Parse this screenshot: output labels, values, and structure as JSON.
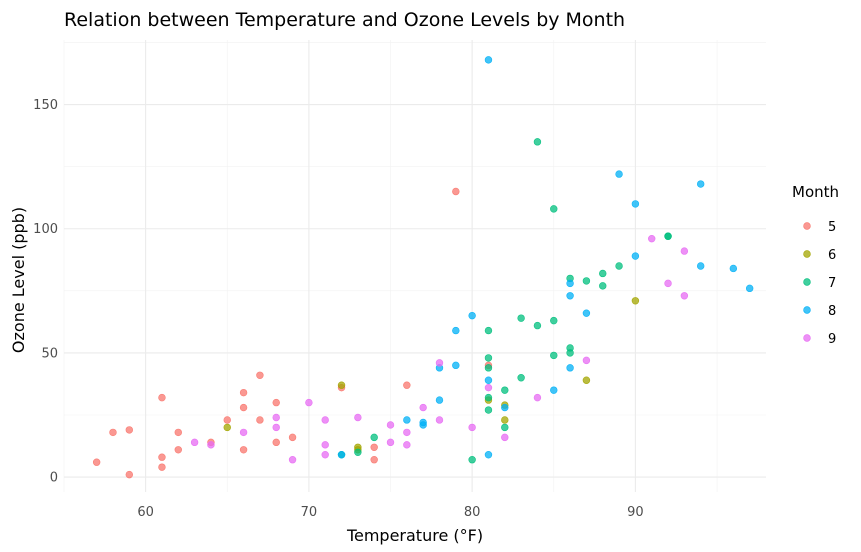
{
  "chart_data": {
    "type": "scatter",
    "title": "Relation between Temperature and Ozone Levels by Month",
    "xlabel": "Temperature (°F)",
    "ylabel": "Ozone Level (ppb)",
    "xlim": [
      55,
      98
    ],
    "ylim": [
      -6,
      176
    ],
    "x_ticks": [
      60,
      70,
      80,
      90
    ],
    "y_ticks": [
      0,
      50,
      100,
      150
    ],
    "grid": true,
    "legend": {
      "title": "Month",
      "position": "right"
    },
    "series": [
      {
        "name": "5",
        "color": "#F8766D",
        "points": [
          [
            57,
            6
          ],
          [
            58,
            18
          ],
          [
            59,
            1
          ],
          [
            59,
            19
          ],
          [
            61,
            32
          ],
          [
            61,
            8
          ],
          [
            61,
            4
          ],
          [
            62,
            11
          ],
          [
            62,
            18
          ],
          [
            64,
            14
          ],
          [
            65,
            23
          ],
          [
            66,
            34
          ],
          [
            66,
            28
          ],
          [
            66,
            11
          ],
          [
            67,
            41
          ],
          [
            67,
            23
          ],
          [
            68,
            30
          ],
          [
            68,
            14
          ],
          [
            69,
            16
          ],
          [
            72,
            36
          ],
          [
            74,
            7
          ],
          [
            74,
            12
          ],
          [
            76,
            37
          ],
          [
            79,
            115
          ],
          [
            81,
            45
          ]
        ]
      },
      {
        "name": "6",
        "color": "#A3A500",
        "points": [
          [
            65,
            20
          ],
          [
            72,
            37
          ],
          [
            73,
            12
          ],
          [
            73,
            11
          ],
          [
            81,
            31
          ],
          [
            82,
            23
          ],
          [
            82,
            29
          ],
          [
            87,
            39
          ],
          [
            90,
            71
          ]
        ]
      },
      {
        "name": "7",
        "color": "#00BF7D",
        "points": [
          [
            72,
            9
          ],
          [
            73,
            10
          ],
          [
            74,
            16
          ],
          [
            80,
            7
          ],
          [
            81,
            27
          ],
          [
            81,
            32
          ],
          [
            81,
            44
          ],
          [
            81,
            48
          ],
          [
            81,
            59
          ],
          [
            82,
            20
          ],
          [
            82,
            35
          ],
          [
            83,
            40
          ],
          [
            83,
            64
          ],
          [
            84,
            61
          ],
          [
            84,
            135
          ],
          [
            85,
            49
          ],
          [
            85,
            63
          ],
          [
            85,
            108
          ],
          [
            86,
            52
          ],
          [
            86,
            50
          ],
          [
            86,
            80
          ],
          [
            87,
            79
          ],
          [
            88,
            77
          ],
          [
            88,
            82
          ],
          [
            89,
            85
          ],
          [
            92,
            97
          ],
          [
            92,
            97
          ]
        ]
      },
      {
        "name": "8",
        "color": "#00B0F6",
        "points": [
          [
            72,
            9
          ],
          [
            76,
            23
          ],
          [
            77,
            21
          ],
          [
            77,
            22
          ],
          [
            78,
            31
          ],
          [
            78,
            44
          ],
          [
            79,
            45
          ],
          [
            79,
            59
          ],
          [
            80,
            65
          ],
          [
            81,
            9
          ],
          [
            81,
            39
          ],
          [
            81,
            168
          ],
          [
            82,
            28
          ],
          [
            85,
            35
          ],
          [
            86,
            73
          ],
          [
            86,
            44
          ],
          [
            86,
            78
          ],
          [
            87,
            66
          ],
          [
            89,
            122
          ],
          [
            90,
            89
          ],
          [
            90,
            110
          ],
          [
            94,
            85
          ],
          [
            94,
            118
          ],
          [
            96,
            84
          ],
          [
            97,
            76
          ]
        ]
      },
      {
        "name": "9",
        "color": "#E76BF3",
        "points": [
          [
            63,
            14
          ],
          [
            64,
            13
          ],
          [
            66,
            18
          ],
          [
            68,
            20
          ],
          [
            68,
            24
          ],
          [
            69,
            7
          ],
          [
            70,
            30
          ],
          [
            71,
            13
          ],
          [
            71,
            9
          ],
          [
            71,
            23
          ],
          [
            73,
            24
          ],
          [
            75,
            14
          ],
          [
            75,
            21
          ],
          [
            76,
            13
          ],
          [
            76,
            18
          ],
          [
            77,
            28
          ],
          [
            78,
            23
          ],
          [
            78,
            46
          ],
          [
            80,
            20
          ],
          [
            81,
            36
          ],
          [
            82,
            16
          ],
          [
            84,
            32
          ],
          [
            87,
            47
          ],
          [
            91,
            96
          ],
          [
            92,
            78
          ],
          [
            93,
            73
          ],
          [
            93,
            91
          ]
        ]
      }
    ]
  }
}
